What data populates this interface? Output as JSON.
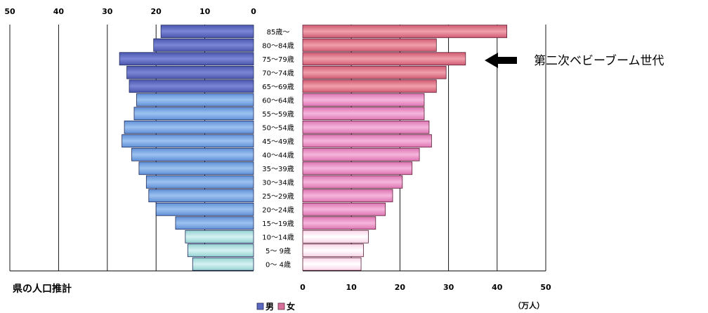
{
  "chart_data": {
    "type": "bar",
    "orientation": "horizontal-pyramid",
    "caption": "県の人口推計",
    "unit": "（万人）",
    "annotation": {
      "text": "第二次ベビーブーム世代",
      "target_category": "75〜79歳"
    },
    "legend": [
      {
        "name": "男",
        "color": "#5a68c0"
      },
      {
        "name": "女",
        "color": "#d86f9a"
      }
    ],
    "categories": [
      "85歳〜",
      "80〜84歳",
      "75〜79歳",
      "70〜74歳",
      "65〜69歳",
      "60〜64歳",
      "55〜59歳",
      "50〜54歳",
      "45〜49歳",
      "40〜44歳",
      "35〜39歳",
      "30〜34歳",
      "25〜29歳",
      "20〜24歳",
      "15〜19歳",
      "10〜14歳",
      "5〜 9歳",
      "0〜 4歳"
    ],
    "series": [
      {
        "name": "男",
        "values": [
          19,
          20.5,
          27.5,
          26,
          25.5,
          24,
          24.5,
          26.5,
          27,
          25,
          23.5,
          22,
          21.5,
          20,
          16,
          14,
          13.5,
          12.5
        ]
      },
      {
        "name": "女",
        "values": [
          42,
          27.5,
          33.5,
          29.5,
          27.5,
          25,
          25,
          26,
          26.5,
          24,
          22.5,
          20.5,
          18.5,
          17,
          15,
          13.5,
          12.5,
          12
        ]
      }
    ],
    "male_axis": {
      "ticks": [
        "50",
        "40",
        "30",
        "20",
        "10",
        "0"
      ],
      "range": [
        0,
        50
      ]
    },
    "female_axis": {
      "ticks": [
        "0",
        "10",
        "20",
        "30",
        "40",
        "50"
      ],
      "range": [
        0,
        50
      ]
    },
    "grid": true,
    "colors": {
      "male_elderly": "#5d6ac2",
      "male_working": "#6f9ee2",
      "male_young": "#a8dede",
      "female_elderly": "#de6f84",
      "female_working": "#e68ac0",
      "female_young": "#fde8f3"
    }
  }
}
